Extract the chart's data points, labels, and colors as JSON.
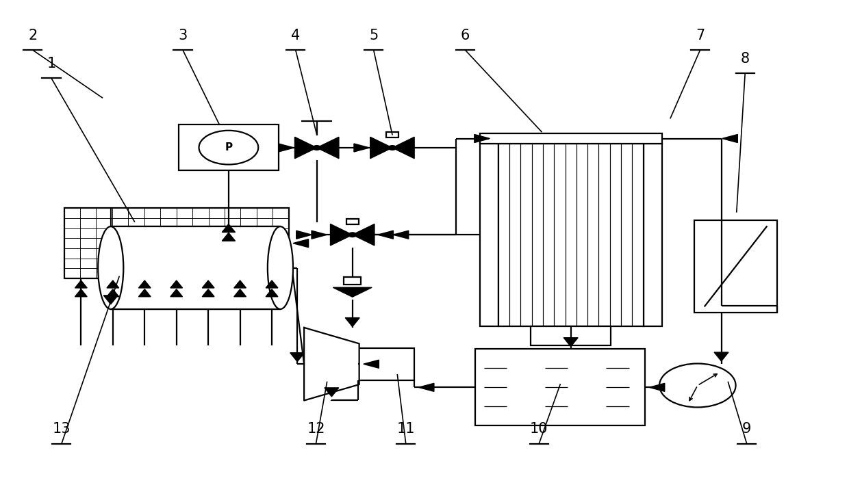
{
  "fig_width": 12.4,
  "fig_height": 7.12,
  "bg_color": "#ffffff",
  "lc": "#000000",
  "lw": 1.6,
  "label_fontsize": 15
}
